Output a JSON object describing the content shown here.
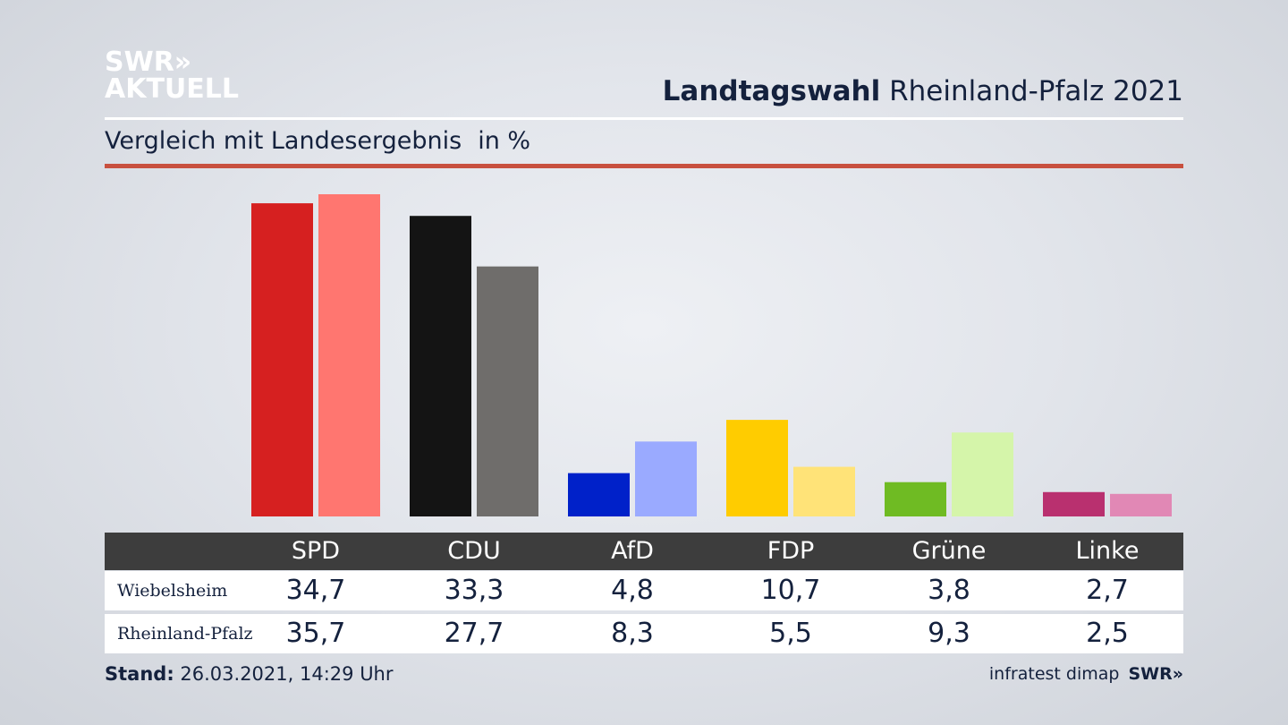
{
  "logo": {
    "line1": "SWR»",
    "line2": "AKTUELL"
  },
  "header": {
    "title_bold": "Landtagswahl",
    "title_rest": "Rheinland-Pfalz 2021"
  },
  "subtitle": {
    "text": "Vergleich mit Landesergebnis",
    "unit": "in %"
  },
  "table": {
    "rows": [
      {
        "label": "Wiebelsheim",
        "values": [
          "34,7",
          "33,3",
          "4,8",
          "10,7",
          "3,8",
          "2,7"
        ]
      },
      {
        "label": "Rheinland-Pfalz",
        "values": [
          "35,7",
          "27,7",
          "8,3",
          "5,5",
          "9,3",
          "2,5"
        ]
      }
    ]
  },
  "footer": {
    "stand_label": "Stand:",
    "stand_value": "26.03.2021, 14:29 Uhr",
    "source": "infratest dimap",
    "brand": "SWR»"
  },
  "chart_data": {
    "type": "bar",
    "categories": [
      "SPD",
      "CDU",
      "AfD",
      "FDP",
      "Grüne",
      "Linke"
    ],
    "series": [
      {
        "name": "Wiebelsheim",
        "values": [
          34.7,
          33.3,
          4.8,
          10.7,
          3.8,
          2.7
        ],
        "colors": [
          "#d62020",
          "#141414",
          "#0021c9",
          "#ffcc00",
          "#6fbb23",
          "#b9306f"
        ]
      },
      {
        "name": "Rheinland-Pfalz",
        "values": [
          35.7,
          27.7,
          8.3,
          5.5,
          9.3,
          2.5
        ],
        "colors": [
          "#ff7670",
          "#6f6d6b",
          "#9aaaff",
          "#ffe378",
          "#d5f5aa",
          "#e188b5"
        ]
      }
    ],
    "ylim": [
      0,
      36
    ],
    "grid": false
  }
}
